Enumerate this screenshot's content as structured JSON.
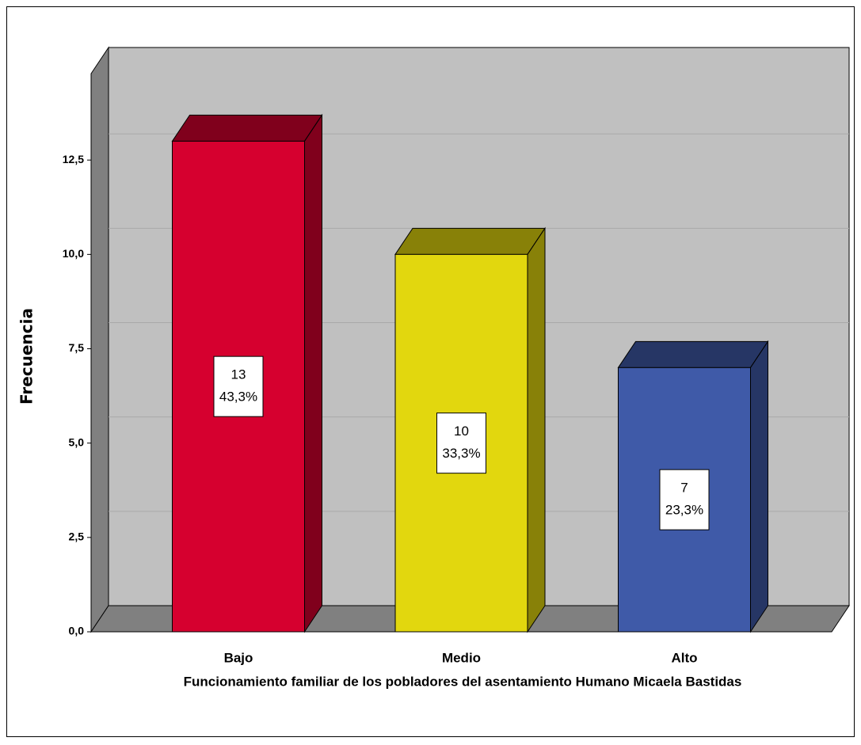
{
  "chart_data": {
    "type": "bar3d",
    "x_label": "Funcionamiento familiar de los pobladores del asentamiento Humano Micaela Bastidas",
    "y_label": "Frecuencia",
    "categories": [
      "Bajo",
      "Medio",
      "Alto"
    ],
    "values": [
      13,
      10,
      7
    ],
    "percent": {
      "values": [
        43.3,
        33.3,
        23.3
      ],
      "value_labels": [
        "43,3%",
        "33,3%",
        "23,3%"
      ]
    },
    "colors": [
      "#d6002f",
      "#e2d70e",
      "#3f5aa8"
    ],
    "ylim": [
      0,
      15
    ],
    "yticks": [
      {
        "value": 0,
        "label": "0,0"
      },
      {
        "value": 2.5,
        "label": "2,5"
      },
      {
        "value": 5,
        "label": "5,0"
      },
      {
        "value": 7.5,
        "label": "7,5"
      },
      {
        "value": 10,
        "label": "10,0"
      },
      {
        "value": 12.5,
        "label": "12,5"
      }
    ],
    "grid": true
  }
}
